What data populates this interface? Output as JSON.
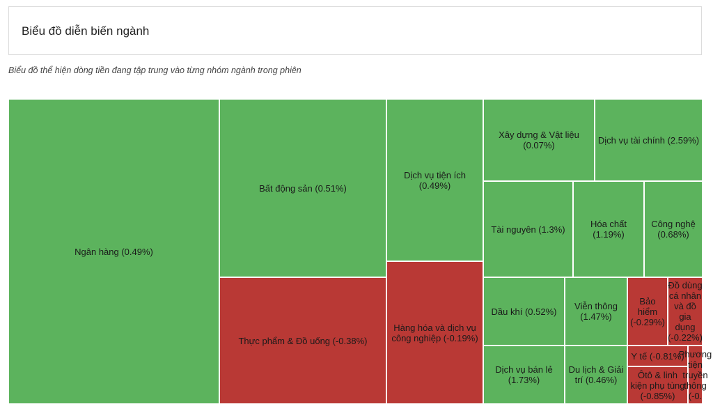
{
  "header": {
    "title": "Biểu đồ diễn biến ngành"
  },
  "subtitle": "Biểu đồ thể hiện dòng tiền đang tập trung vào từng nhóm ngành trong phiên",
  "colors": {
    "up": "#5cb35d",
    "down": "#b93935"
  },
  "chart_data": {
    "type": "treemap",
    "items": [
      {
        "name": "Ngân hàng (0.49%)",
        "change": 0.49
      },
      {
        "name": "Bất động sản (0.51%)",
        "change": 0.51
      },
      {
        "name": "Thực phẩm & Đồ uống (-0.38%)",
        "change": -0.38
      },
      {
        "name": "Dịch vụ tiện ích (0.49%)",
        "change": 0.49
      },
      {
        "name": "Hàng hóa và dịch vụ công nghiệp (-0.19%)",
        "change": -0.19
      },
      {
        "name": "Xây dựng & Vật liệu (0.07%)",
        "change": 0.07
      },
      {
        "name": "Dịch vụ tài chính (2.59%)",
        "change": 2.59
      },
      {
        "name": "Tài nguyên (1.3%)",
        "change": 1.3
      },
      {
        "name": "Hóa chất (1.19%)",
        "change": 1.19
      },
      {
        "name": "Công nghệ (0.68%)",
        "change": 0.68
      },
      {
        "name": "Dầu khí (0.52%)",
        "change": 0.52
      },
      {
        "name": "Viễn thông (1.47%)",
        "change": 1.47
      },
      {
        "name": "Bảo hiểm (-0.29%)",
        "change": -0.29
      },
      {
        "name": "Đồ dùng cá nhân và đồ gia dụng (-0.22%)",
        "change": -0.22
      },
      {
        "name": "Dịch vụ bán lẻ (1.73%)",
        "change": 1.73
      },
      {
        "name": "Du lịch & Giải trí (0.46%)",
        "change": 0.46
      },
      {
        "name": "Y tế (-0.81%)",
        "change": -0.81
      },
      {
        "name": "Ôtô & linh kiện phụ tùng (-0.85%)",
        "change": -0.85
      },
      {
        "name": "Phương tiện truyền thông (-0.",
        "change": null
      }
    ]
  }
}
